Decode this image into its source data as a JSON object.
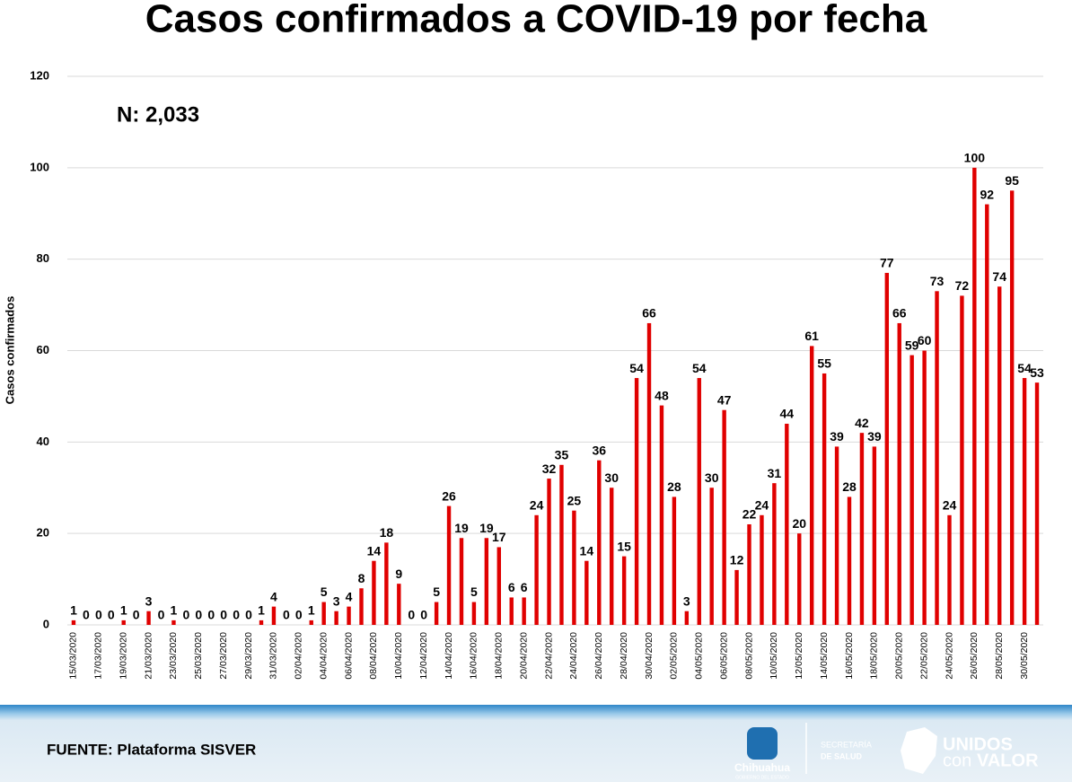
{
  "chart_data": {
    "type": "bar",
    "title": "Casos confirmados a COVID-19 por fecha",
    "annotation": "N: 2,033",
    "y_label": "Casos confirmados",
    "color": "#e00000",
    "grid": true,
    "ylim": [
      0,
      120
    ],
    "yticks": [
      0,
      20,
      40,
      60,
      80,
      100,
      120
    ],
    "categories": [
      "15/03/2020",
      null,
      "17/03/2020",
      null,
      "19/03/2020",
      null,
      "21/03/2020",
      null,
      "23/03/2020",
      null,
      "25/03/2020",
      null,
      "27/03/2020",
      null,
      "29/03/2020",
      null,
      "31/03/2020",
      null,
      "02/04/2020",
      null,
      "04/04/2020",
      null,
      "06/04/2020",
      null,
      "08/04/2020",
      null,
      "10/04/2020",
      null,
      "12/04/2020",
      null,
      "14/04/2020",
      null,
      "16/04/2020",
      null,
      "18/04/2020",
      null,
      "20/04/2020",
      null,
      "22/04/2020",
      null,
      "24/04/2020",
      null,
      "26/04/2020",
      null,
      "28/04/2020",
      null,
      "30/04/2020",
      null,
      "02/05/2020",
      null,
      "04/05/2020",
      null,
      "06/05/2020",
      null,
      "08/05/2020",
      null,
      "10/05/2020",
      null,
      "12/05/2020",
      null,
      "14/05/2020",
      null,
      "16/05/2020",
      null,
      "18/05/2020",
      null,
      "20/05/2020",
      null,
      "22/05/2020",
      null,
      "24/05/2020",
      null,
      "26/05/2020",
      null,
      "28/05/2020",
      null,
      "30/05/2020",
      null
    ],
    "values": [
      1,
      0,
      0,
      0,
      1,
      0,
      3,
      0,
      1,
      0,
      0,
      0,
      0,
      0,
      0,
      1,
      4,
      0,
      0,
      1,
      5,
      3,
      4,
      8,
      14,
      18,
      9,
      0,
      0,
      5,
      26,
      19,
      5,
      19,
      17,
      6,
      6,
      24,
      32,
      35,
      25,
      14,
      36,
      30,
      15,
      54,
      66,
      48,
      28,
      3,
      54,
      30,
      47,
      12,
      22,
      24,
      31,
      44,
      20,
      61,
      55,
      39,
      28,
      42,
      39,
      77,
      66,
      59,
      60,
      73,
      24,
      72,
      100,
      92,
      74,
      95,
      54,
      53
    ]
  },
  "footer": {
    "source": "FUENTE: Plataforma SISVER",
    "logo1": "Chihuahua",
    "logo1_sub": "GOBIERNO DEL ESTADO",
    "logo2_line1": "SECRETARÍA",
    "logo2_line2": "DE SALUD",
    "logo3_line1": "UNIDOS",
    "logo3_con": "con",
    "logo3_valor": "VALOR"
  }
}
